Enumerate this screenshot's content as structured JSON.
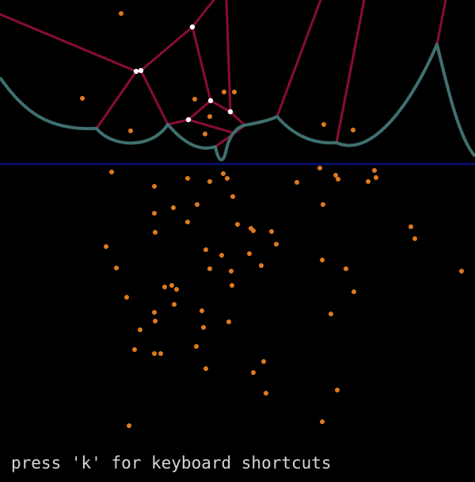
{
  "hint": {
    "text": "press 'k' for keyboard shortcuts"
  },
  "colors": {
    "background": "#000000",
    "site": "#e07b1e",
    "voronoi_edge": "#8a0c35",
    "beach_line": "#3f7070",
    "sweep_line": "#0a0f66",
    "vertex": "#ffffff"
  }
}
